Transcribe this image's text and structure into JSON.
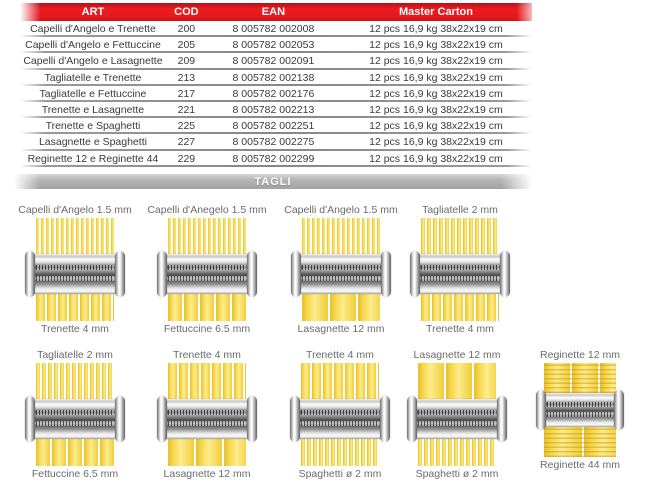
{
  "table": {
    "headers": [
      "ART",
      "COD",
      "EAN",
      "Master Carton"
    ],
    "rows": [
      {
        "art": "Capelli d'Angelo e Trenette",
        "cod": "200",
        "ean": "8 005782 002008",
        "carton": "12 pcs 16,9 kg 38x22x19 cm"
      },
      {
        "art": "Capelli d'Angelo e Fettuccine",
        "cod": "205",
        "ean": "8 005782 002053",
        "carton": "12 pcs 16,9 kg 38x22x19 cm"
      },
      {
        "art": "Capelli d'Angelo e Lasagnette",
        "cod": "209",
        "ean": "8 005782 002091",
        "carton": "12 pcs 16,9 kg 38x22x19 cm"
      },
      {
        "art": "Tagliatelle e Trenette",
        "cod": "213",
        "ean": "8 005782 002138",
        "carton": "12 pcs 16,9 kg 38x22x19 cm"
      },
      {
        "art": "Tagliatelle e Fettuccine",
        "cod": "217",
        "ean": "8 005782 002176",
        "carton": "12 pcs 16,9 kg 38x22x19 cm"
      },
      {
        "art": "Trenette e Lasagnette",
        "cod": "221",
        "ean": "8 005782 002213",
        "carton": "12 pcs 16,9 kg 38x22x19 cm"
      },
      {
        "art": "Trenette e Spaghetti",
        "cod": "225",
        "ean": "8 005782 002251",
        "carton": "12 pcs 16,9 kg 38x22x19 cm"
      },
      {
        "art": "Lasagnette e Spaghetti",
        "cod": "227",
        "ean": "8 005782 002275",
        "carton": "12 pcs 16,9 kg 38x22x19 cm"
      },
      {
        "art": "Reginette 12 e Reginette 44",
        "cod": "229",
        "ean": "8 005782 002299",
        "carton": "12 pcs 16,9 kg 38x22x19 cm"
      }
    ]
  },
  "section_bar": {
    "label": "TAGLI"
  },
  "cutters": {
    "rows": [
      [
        {
          "top_label": "Capelli d'Angelo 1.5 mm",
          "top_mm": 1.5,
          "bottom_label": "Trenette 4 mm",
          "bottom_mm": 4
        },
        {
          "top_label": "Capelli d'Anegelo 1.5 mm",
          "top_mm": 1.5,
          "bottom_label": "Fettuccine 6.5 mm",
          "bottom_mm": 6.5
        },
        {
          "top_label": "Capelli d'Angelo 1.5 mm",
          "top_mm": 1.5,
          "bottom_label": "Lasagnette 12 mm",
          "bottom_mm": 12
        },
        {
          "top_label": "Tagliatelle 2 mm",
          "top_mm": 2,
          "bottom_label": "Trenette 4 mm",
          "bottom_mm": 4
        }
      ],
      [
        {
          "top_label": "Tagliatelle 2 mm",
          "top_mm": 2,
          "bottom_label": "Fettuccine 6.5 mm",
          "bottom_mm": 6.5
        },
        {
          "top_label": "Trenette 4 mm",
          "top_mm": 4,
          "bottom_label": "Lasagnette 12 mm",
          "bottom_mm": 12
        },
        {
          "top_label": "Trenette 4 mm",
          "top_mm": 4,
          "bottom_label": "Spaghetti ø 2 mm",
          "bottom_mm": 2
        },
        {
          "top_label": "Lasagnette 12 mm",
          "top_mm": 12,
          "bottom_label": "Spaghetti ø 2 mm",
          "bottom_mm": 2
        },
        {
          "top_label": "Reginette 12 mm",
          "top_mm": 12,
          "bottom_label": "Reginette 44 mm",
          "bottom_mm": 44,
          "ruffled": true,
          "small": true
        }
      ]
    ]
  },
  "colors": {
    "header_red": "#e6181c",
    "pasta_yellow": "#f2cd37",
    "metal_gray": "#9a9a9a",
    "bar_gray": "#b0b0b0"
  }
}
